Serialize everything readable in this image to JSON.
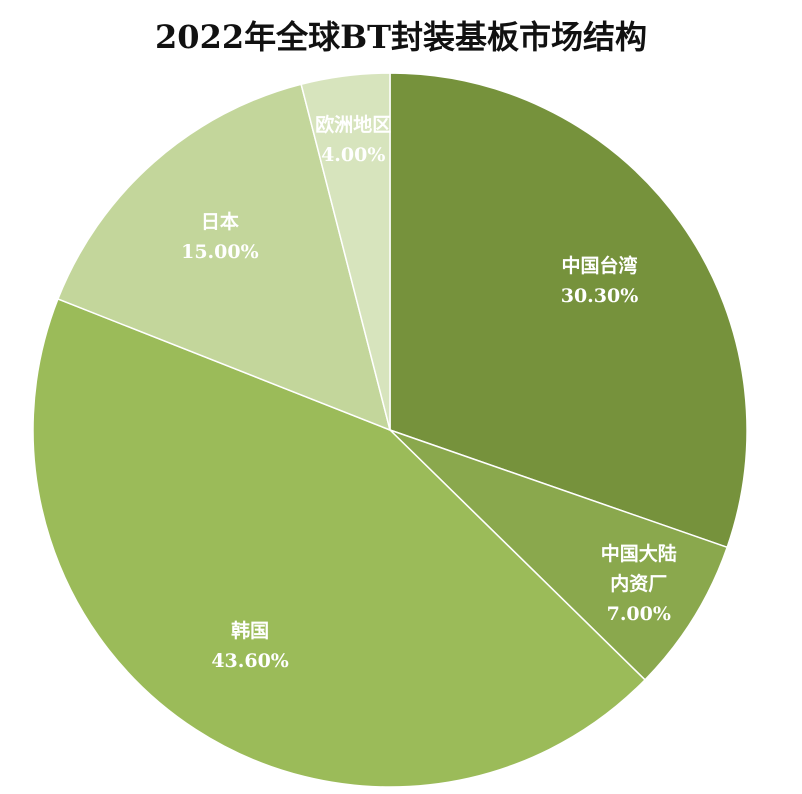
{
  "chart_data": {
    "type": "pie",
    "title": "2022年全球BT封装基板市场结构",
    "categories": [
      "中国台湾",
      "中国大陆\n内资厂",
      "韩国",
      "日本",
      "欧洲地区"
    ],
    "values": [
      30.3,
      7.0,
      43.6,
      15.0,
      4.0
    ],
    "value_labels": [
      "30.30%",
      "7.00%",
      "43.60%",
      "15.00%",
      "4.00%"
    ],
    "colors": [
      "#76923c",
      "#8aa84d",
      "#9bbb59",
      "#c3d69b",
      "#d7e4bd"
    ]
  }
}
